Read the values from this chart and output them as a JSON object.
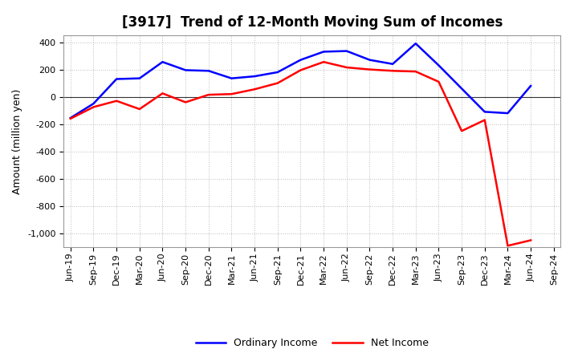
{
  "title": "[3917]  Trend of 12-Month Moving Sum of Incomes",
  "ylabel": "Amount (million yen)",
  "xlabels": [
    "Jun-19",
    "Sep-19",
    "Dec-19",
    "Mar-20",
    "Jun-20",
    "Sep-20",
    "Dec-20",
    "Mar-21",
    "Jun-21",
    "Sep-21",
    "Dec-21",
    "Mar-22",
    "Jun-22",
    "Sep-22",
    "Dec-22",
    "Mar-23",
    "Jun-23",
    "Sep-23",
    "Dec-23",
    "Mar-24",
    "Jun-24",
    "Sep-24"
  ],
  "ordinary_income": [
    -155,
    -50,
    130,
    135,
    255,
    195,
    190,
    135,
    150,
    180,
    270,
    330,
    335,
    270,
    240,
    390,
    230,
    60,
    -110,
    -120,
    80,
    null
  ],
  "net_income": [
    -160,
    -75,
    -30,
    -90,
    25,
    -40,
    15,
    20,
    55,
    100,
    195,
    255,
    215,
    200,
    190,
    185,
    110,
    -250,
    -170,
    -1090,
    -1050,
    null
  ],
  "ylim": [
    -1100,
    450
  ],
  "yticks": [
    -1000,
    -800,
    -600,
    -400,
    -200,
    0,
    200,
    400
  ],
  "ordinary_color": "#0000FF",
  "net_color": "#FF0000",
  "background_color": "#FFFFFF",
  "grid_color": "#AAAAAA",
  "legend_labels": [
    "Ordinary Income",
    "Net Income"
  ],
  "title_fontsize": 12,
  "ylabel_fontsize": 9,
  "tick_fontsize": 8,
  "legend_fontsize": 9
}
